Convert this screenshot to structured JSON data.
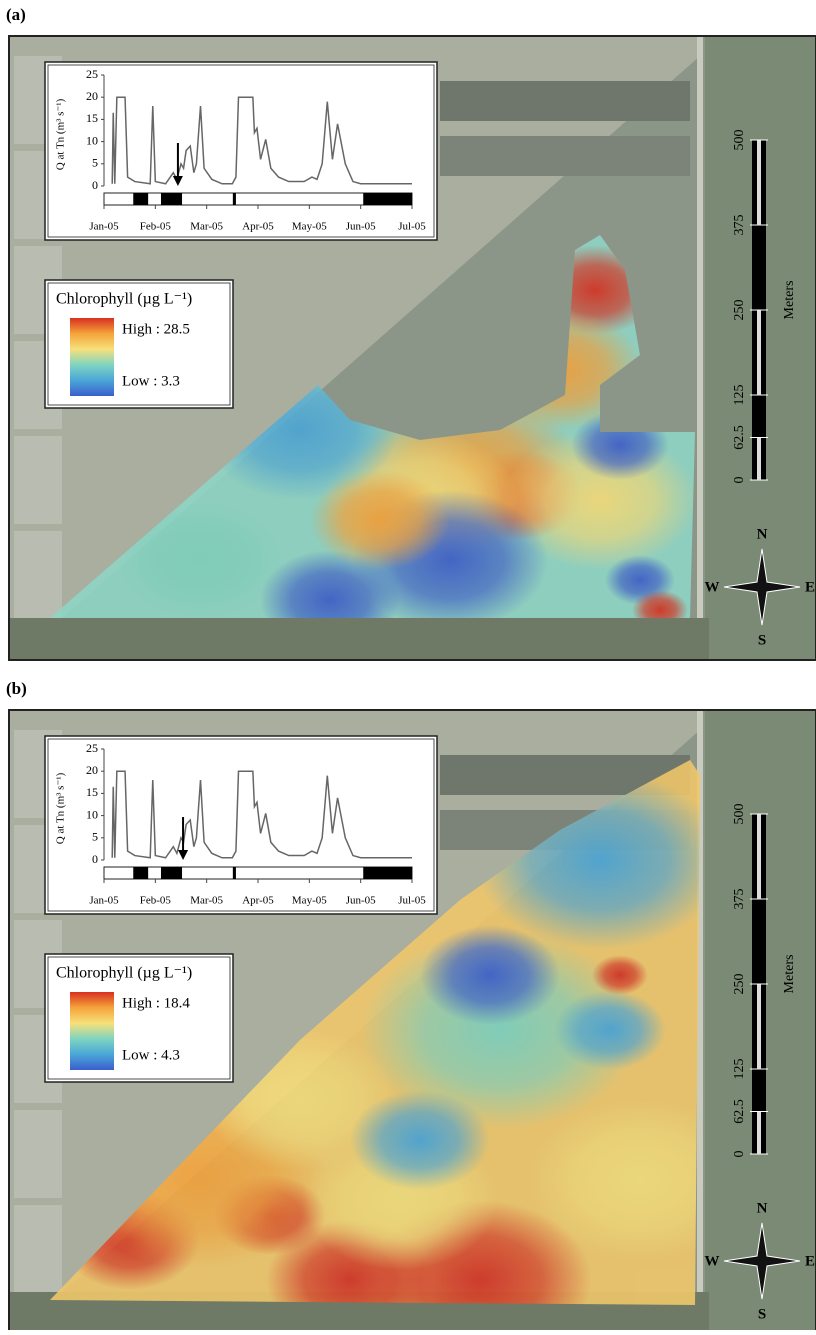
{
  "panels": [
    {
      "label": "(a)",
      "chart_data": {
        "type": "line",
        "ylabel": "Q at Tn (m³ s⁻¹)",
        "x": [
          0.16,
          0.18,
          0.21,
          0.25,
          0.41,
          0.46,
          0.6,
          0.9,
          0.95,
          1.0,
          1.2,
          1.35,
          1.42,
          1.5,
          1.55,
          1.6,
          1.68,
          1.75,
          1.8,
          1.88,
          1.95,
          2.1,
          2.3,
          2.5,
          2.57,
          2.62,
          2.9,
          2.93,
          2.98,
          3.05,
          3.15,
          3.25,
          3.4,
          3.6,
          3.9,
          4.05,
          4.15,
          4.25,
          4.35,
          4.45,
          4.55,
          4.7,
          4.85,
          5.0,
          6.0
        ],
        "series": [
          {
            "color": "#666666",
            "values": [
              0.5,
              16.5,
              0.5,
              20,
              20,
              2,
              1,
              0.5,
              18,
              1,
              0.5,
              3,
              1.5,
              5,
              4,
              8,
              9,
              3,
              5,
              18,
              4,
              1.5,
              0.5,
              0.5,
              2,
              20,
              20,
              12,
              13,
              6,
              10.5,
              4,
              2,
              1,
              1,
              2,
              1.5,
              5,
              19,
              6,
              14,
              5,
              1,
              0.5,
              0.5
            ]
          }
        ],
        "xlim": [
          0,
          6
        ],
        "xticks": [
          {
            "value": 0,
            "label": "Jan-05"
          },
          {
            "value": 1,
            "label": "Feb-05"
          },
          {
            "value": 2,
            "label": "Mar-05"
          },
          {
            "value": 3,
            "label": "Apr-05"
          },
          {
            "value": 4,
            "label": "May-05"
          },
          {
            "value": 5,
            "label": "Jun-05"
          },
          {
            "value": 6,
            "label": "Jul-05"
          }
        ],
        "ylim": [
          0,
          25
        ],
        "yticks": [
          0,
          5,
          10,
          15,
          20,
          25
        ],
        "periods": [
          [
            0.57,
            0.86
          ],
          [
            1.11,
            1.52
          ],
          [
            2.51,
            2.57
          ],
          [
            5.05,
            6.0
          ]
        ],
        "arrow_x": 1.44
      },
      "legend": {
        "title": "Chlorophyll (µg L⁻¹)",
        "high": "High : 28.5",
        "low": "Low : 3.3",
        "colors": [
          "#d7301f",
          "#f5a33a",
          "#f7e07a",
          "#7fd4c0",
          "#4aa6d8",
          "#3a5fcd"
        ]
      },
      "scale": {
        "ticks": [
          0,
          62.5,
          125,
          250,
          375,
          500
        ],
        "unit": "Meters"
      },
      "compass": {
        "n": "N",
        "s": "S",
        "w": "W",
        "e": "E"
      }
    },
    {
      "label": "(b)",
      "chart_data": {
        "type": "line",
        "ylabel": "Q at Tn (m³ s⁻¹)",
        "x": [
          0.16,
          0.18,
          0.21,
          0.25,
          0.41,
          0.46,
          0.6,
          0.9,
          0.95,
          1.0,
          1.2,
          1.35,
          1.42,
          1.5,
          1.55,
          1.6,
          1.68,
          1.75,
          1.8,
          1.88,
          1.95,
          2.1,
          2.3,
          2.5,
          2.57,
          2.62,
          2.9,
          2.93,
          2.98,
          3.05,
          3.15,
          3.25,
          3.4,
          3.6,
          3.9,
          4.05,
          4.15,
          4.25,
          4.35,
          4.45,
          4.55,
          4.7,
          4.85,
          5.0,
          6.0
        ],
        "series": [
          {
            "color": "#666666",
            "values": [
              0.5,
              16.5,
              0.5,
              20,
              20,
              2,
              1,
              0.5,
              18,
              1,
              0.5,
              3,
              1.5,
              5,
              4,
              8,
              9,
              3,
              5,
              18,
              4,
              1.5,
              0.5,
              0.5,
              2,
              20,
              20,
              12,
              13,
              6,
              10.5,
              4,
              2,
              1,
              1,
              2,
              1.5,
              5,
              19,
              6,
              14,
              5,
              1,
              0.5,
              0.5
            ]
          }
        ],
        "xlim": [
          0,
          6
        ],
        "xticks": [
          {
            "value": 0,
            "label": "Jan-05"
          },
          {
            "value": 1,
            "label": "Feb-05"
          },
          {
            "value": 2,
            "label": "Mar-05"
          },
          {
            "value": 3,
            "label": "Apr-05"
          },
          {
            "value": 4,
            "label": "May-05"
          },
          {
            "value": 5,
            "label": "Jun-05"
          },
          {
            "value": 6,
            "label": "Jul-05"
          }
        ],
        "ylim": [
          0,
          25
        ],
        "yticks": [
          0,
          5,
          10,
          15,
          20,
          25
        ],
        "periods": [
          [
            0.57,
            0.86
          ],
          [
            1.11,
            1.52
          ],
          [
            2.51,
            2.57
          ],
          [
            5.05,
            6.0
          ]
        ],
        "arrow_x": 1.54
      },
      "legend": {
        "title": "Chlorophyll (µg L⁻¹)",
        "high": "High : 18.4",
        "low": "Low : 4.3",
        "colors": [
          "#d7301f",
          "#f5a33a",
          "#f7e07a",
          "#7fd4c0",
          "#4aa6d8",
          "#3a5fcd"
        ]
      },
      "scale": {
        "ticks": [
          0,
          62.5,
          125,
          250,
          375,
          500
        ],
        "unit": "Meters"
      },
      "compass": {
        "n": "N",
        "s": "S",
        "w": "W",
        "e": "E"
      }
    }
  ]
}
